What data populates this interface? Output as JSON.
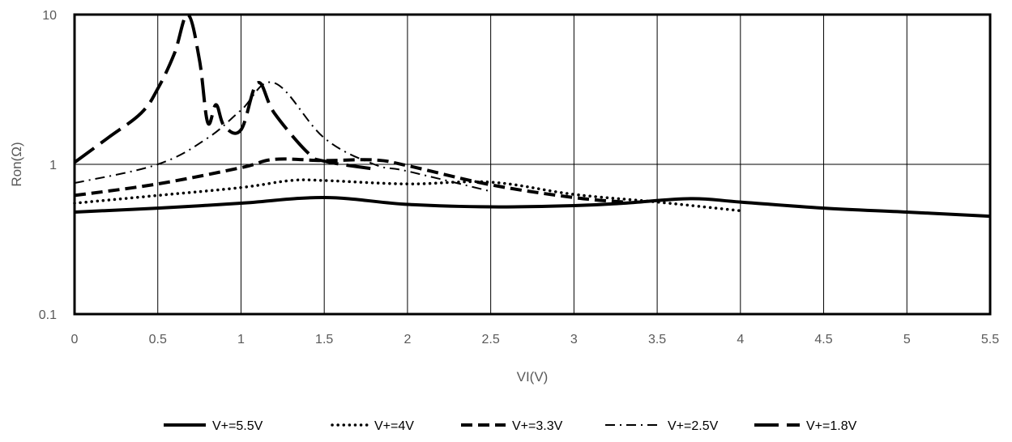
{
  "chart_data": {
    "type": "line",
    "title": "",
    "xlabel": "VI(V)",
    "ylabel": "Ron(Ω)",
    "xlim": [
      0,
      5.5
    ],
    "ylim": [
      0.1,
      10
    ],
    "y_scale": "log",
    "grid": true,
    "legend_position": "bottom",
    "x_ticks": [
      "0",
      "0.5",
      "1",
      "1.5",
      "2",
      "2.5",
      "3",
      "3.5",
      "4",
      "4.5",
      "5",
      "5.5"
    ],
    "y_ticks": [
      "0.1",
      "1",
      "10"
    ],
    "series": [
      {
        "name": "V+=5.5V",
        "style": "solid-thick",
        "points": [
          [
            0,
            0.48
          ],
          [
            0.5,
            0.51
          ],
          [
            1,
            0.55
          ],
          [
            1.5,
            0.6
          ],
          [
            2,
            0.54
          ],
          [
            2.5,
            0.52
          ],
          [
            3,
            0.53
          ],
          [
            3.3,
            0.55
          ],
          [
            3.7,
            0.59
          ],
          [
            4,
            0.56
          ],
          [
            4.5,
            0.51
          ],
          [
            5,
            0.48
          ],
          [
            5.5,
            0.45
          ]
        ]
      },
      {
        "name": "V+=4V",
        "style": "dotted",
        "points": [
          [
            0,
            0.55
          ],
          [
            0.5,
            0.62
          ],
          [
            1,
            0.7
          ],
          [
            1.3,
            0.78
          ],
          [
            1.5,
            0.78
          ],
          [
            2,
            0.74
          ],
          [
            2.5,
            0.76
          ],
          [
            3,
            0.63
          ],
          [
            3.5,
            0.56
          ],
          [
            4,
            0.49
          ]
        ]
      },
      {
        "name": "V+=3.3V",
        "style": "dashed",
        "points": [
          [
            0,
            0.62
          ],
          [
            0.5,
            0.74
          ],
          [
            1,
            0.95
          ],
          [
            1.2,
            1.08
          ],
          [
            1.5,
            1.06
          ],
          [
            1.8,
            1.07
          ],
          [
            2,
            0.98
          ],
          [
            2.5,
            0.73
          ],
          [
            3,
            0.6
          ],
          [
            3.3,
            0.56
          ]
        ]
      },
      {
        "name": "V+=2.5V",
        "style": "dash-dot",
        "points": [
          [
            0,
            0.75
          ],
          [
            0.5,
            1.0
          ],
          [
            0.8,
            1.5
          ],
          [
            1,
            2.3
          ],
          [
            1.2,
            3.5
          ],
          [
            1.5,
            1.5
          ],
          [
            1.8,
            1.0
          ],
          [
            2,
            0.9
          ],
          [
            2.5,
            0.66
          ]
        ]
      },
      {
        "name": "V+=1.8V",
        "style": "long-dash",
        "points": [
          [
            0,
            1.03
          ],
          [
            0.2,
            1.5
          ],
          [
            0.4,
            2.2
          ],
          [
            0.5,
            3.2
          ],
          [
            0.6,
            5.5
          ],
          [
            0.68,
            10
          ],
          [
            0.75,
            5
          ],
          [
            0.8,
            1.9
          ],
          [
            0.85,
            2.5
          ],
          [
            0.9,
            1.8
          ],
          [
            1.0,
            1.7
          ],
          [
            1.1,
            3.5
          ],
          [
            1.2,
            2.2
          ],
          [
            1.4,
            1.2
          ],
          [
            1.5,
            1.05
          ],
          [
            1.8,
            0.93
          ]
        ]
      }
    ]
  }
}
